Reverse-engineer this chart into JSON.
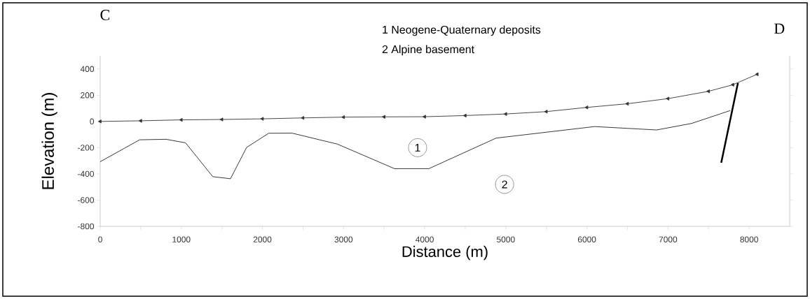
{
  "chart_data": {
    "type": "line",
    "xlabel": "Distance (m)",
    "ylabel": "Elevation (m)",
    "xlim": [
      0,
      8500
    ],
    "ylim": [
      -800,
      500
    ],
    "xticks": [
      0,
      {
        "value": 500,
        "label": null
      },
      1000,
      {
        "value": 1500,
        "label": null
      },
      2000,
      {
        "value": 2500,
        "label": null
      },
      3000,
      {
        "value": 3500,
        "label": null
      },
      4000,
      {
        "value": 4500,
        "label": null
      },
      5000,
      {
        "value": 5500,
        "label": null
      },
      6000,
      {
        "value": 6500,
        "label": null
      },
      7000,
      {
        "value": 7500,
        "label": null
      },
      8000
    ],
    "yticks": [
      -800,
      -600,
      -400,
      -200,
      0,
      200,
      400
    ],
    "series": [
      {
        "x": [
          0,
          500,
          1000,
          1500,
          2000,
          2500,
          3000,
          3500,
          4000,
          4500,
          5000,
          5500,
          6000,
          6500,
          7000,
          7500,
          7800,
          8100
        ],
        "values": [
          0,
          5,
          12,
          15,
          20,
          27,
          33,
          35,
          36,
          45,
          57,
          75,
          107,
          135,
          174,
          230,
          280,
          360
        ],
        "color": "#333333",
        "marker": "triangle"
      },
      {
        "x": [
          0,
          486,
          812,
          1052,
          1388,
          1606,
          1805,
          2077,
          2365,
          2925,
          3628,
          4052,
          4881,
          6095,
          6860,
          7291,
          7767
        ],
        "values": [
          -307,
          -140,
          -136,
          -163,
          -421,
          -437,
          -198,
          -90,
          -89,
          -173,
          -360,
          -360,
          -127,
          -39,
          -65,
          -15,
          83
        ],
        "color": "#222222",
        "marker": "none"
      },
      {
        "x": [
          7656,
          7862
        ],
        "values": [
          -315,
          293
        ],
        "color": "#000000",
        "marker": "none"
      }
    ],
    "annotations": [
      "C",
      "D",
      "1 Neogene-Quaternary deposits",
      "2 Alpine basement",
      {
        "text": "1",
        "x": 3913,
        "y": -200
      },
      {
        "text": "2",
        "x": 4985,
        "y": -480
      }
    ]
  }
}
